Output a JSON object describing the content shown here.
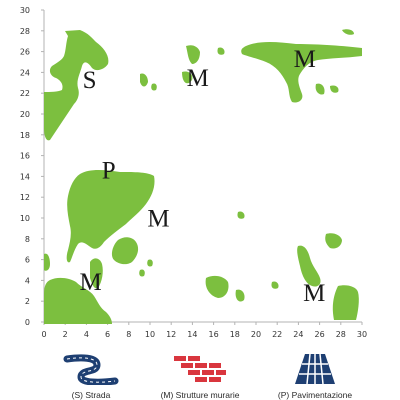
{
  "map": {
    "x_ticks": [
      "0",
      "2",
      "4",
      "6",
      "8",
      "10",
      "12",
      "14",
      "16",
      "18",
      "20",
      "22",
      "24",
      "26",
      "28",
      "30"
    ],
    "y_ticks": [
      "0",
      "2",
      "4",
      "6",
      "8",
      "10",
      "12",
      "14",
      "16",
      "18",
      "20",
      "22",
      "24",
      "26",
      "28",
      "30"
    ],
    "x_range": [
      0,
      30
    ],
    "y_range": [
      0,
      30
    ],
    "vegetation_color": "#7cbf3f",
    "axis_color": "#b3b3b3",
    "letters": [
      {
        "text": "S",
        "x": 4.3,
        "y": 22.5
      },
      {
        "text": "M",
        "x": 14.5,
        "y": 22.7
      },
      {
        "text": "M",
        "x": 24.6,
        "y": 24.5
      },
      {
        "text": "P",
        "x": 6.1,
        "y": 13.8
      },
      {
        "text": "M",
        "x": 10.8,
        "y": 9.2
      },
      {
        "text": "M",
        "x": 4.4,
        "y": 3.1
      },
      {
        "text": "M",
        "x": 25.5,
        "y": 2.0
      }
    ]
  },
  "legend": {
    "road": {
      "icon": "road-icon",
      "label": "(S) Strada"
    },
    "walls": {
      "icon": "brick-wall-icon",
      "label": "(M) Strutture murarie"
    },
    "paving": {
      "icon": "paving-icon",
      "label": "(P) Pavimentazione"
    }
  },
  "colors": {
    "road": "#1e3f72",
    "wall": "#d9363e",
    "paving": "#1e3f72"
  }
}
